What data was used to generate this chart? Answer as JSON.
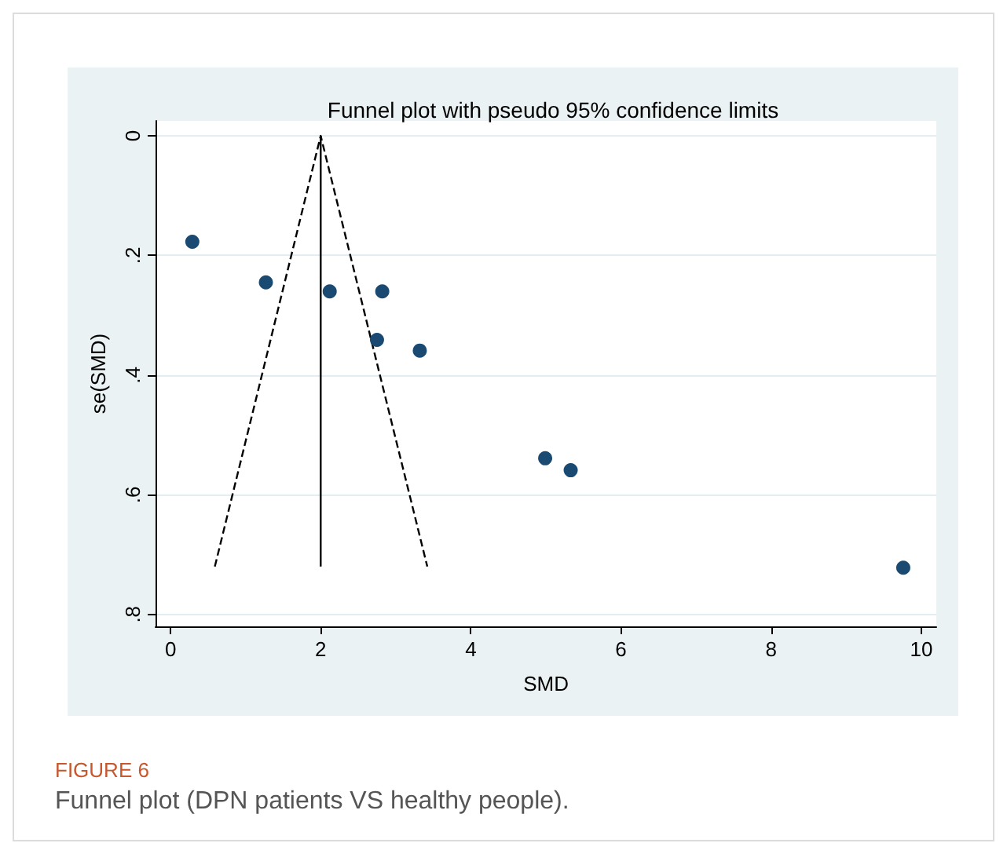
{
  "chart_data": {
    "type": "scatter",
    "title": "Funnel plot with pseudo 95% confidence limits",
    "xlabel": "SMD",
    "ylabel": "se(SMD)",
    "annotations": [
      "FIGURE 6",
      "Funnel plot (DPN patients VS healthy people)."
    ],
    "xlim": [
      -0.2,
      10.2
    ],
    "xticks": [
      0,
      2,
      4,
      6,
      8,
      10
    ],
    "ylim": [
      0.82,
      -0.025
    ],
    "yticks": [
      {
        "value": 0,
        "label": "0"
      },
      {
        "value": 0.2,
        "label": ".2"
      },
      {
        "value": 0.4,
        "label": ".4"
      },
      {
        "value": 0.6,
        "label": ".6"
      },
      {
        "value": 0.8,
        "label": ".8"
      }
    ],
    "grid": "y",
    "series": [
      {
        "type": "line",
        "color": "#000000",
        "line_style": "solid",
        "marker": "none",
        "x": [
          2,
          2
        ],
        "values": [
          0.72,
          0
        ]
      },
      {
        "type": "line",
        "color": "#000000",
        "line_style": "dashed",
        "marker": "none",
        "x": [
          0.59,
          2,
          3.42
        ],
        "values": [
          0.72,
          0,
          0.72
        ]
      },
      {
        "type": "scatter",
        "color": "#1a4a72",
        "marker": "circle",
        "x": [
          0.29,
          1.27,
          2.12,
          2.82,
          2.75,
          3.32,
          4.99,
          5.33,
          9.76
        ],
        "values": [
          0.177,
          0.245,
          0.26,
          0.26,
          0.341,
          0.359,
          0.539,
          0.559,
          0.722
        ]
      }
    ]
  }
}
